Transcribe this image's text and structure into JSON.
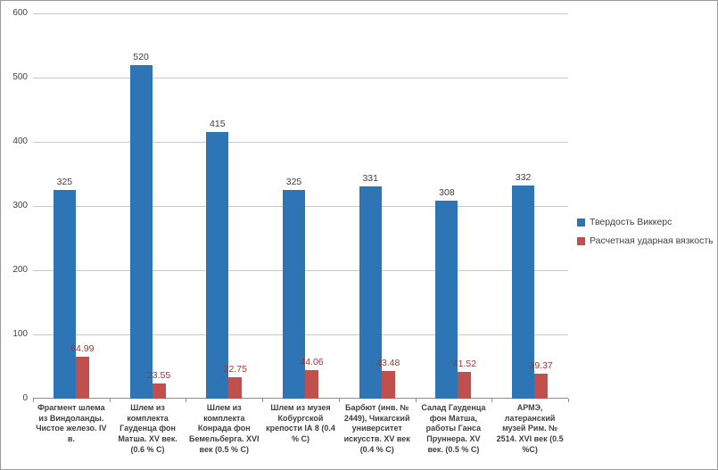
{
  "chart_data": {
    "type": "bar",
    "title": "",
    "categories": [
      "Фрагмент шлема из Виндоланды. Чистое железо. IV в.",
      "Шлем из комплекта Гауденца фон Матша. XV век. (0.6 % C)",
      "Шлем из комплекта Конрада фон Бемельберга. XVI век (0.5 % C)",
      "Шлем из музея Кобургской крепости IА 8 (0.4 % C)",
      "Барбют (инв. № 2449), Чикагский университет искусств. XV век (0.4 % C)",
      "Салад Гауденца фон Матша, работы Ганса Пруннера. XV век. (0.5 % C)",
      "АРМЭ, латеранский музей Рим. № 2514. XVI век (0.5 %C)"
    ],
    "series": [
      {
        "name": "Твердость Виккерс",
        "color": "#2E75B6",
        "label_color": "#3f3f3f",
        "values": [
          325,
          520,
          415,
          325,
          331,
          308,
          332
        ]
      },
      {
        "name": "Расчетная ударная вязкость",
        "color": "#C0504D",
        "label_color": "#953735",
        "values": [
          64.99,
          23.55,
          32.75,
          44.06,
          43.48,
          41.52,
          39.37
        ]
      }
    ],
    "xlabel": "",
    "ylabel": "",
    "ylim": [
      0,
      600
    ],
    "yticks": [
      0,
      100,
      200,
      300,
      400,
      500,
      600
    ],
    "grid": true,
    "legend_position": "right"
  }
}
